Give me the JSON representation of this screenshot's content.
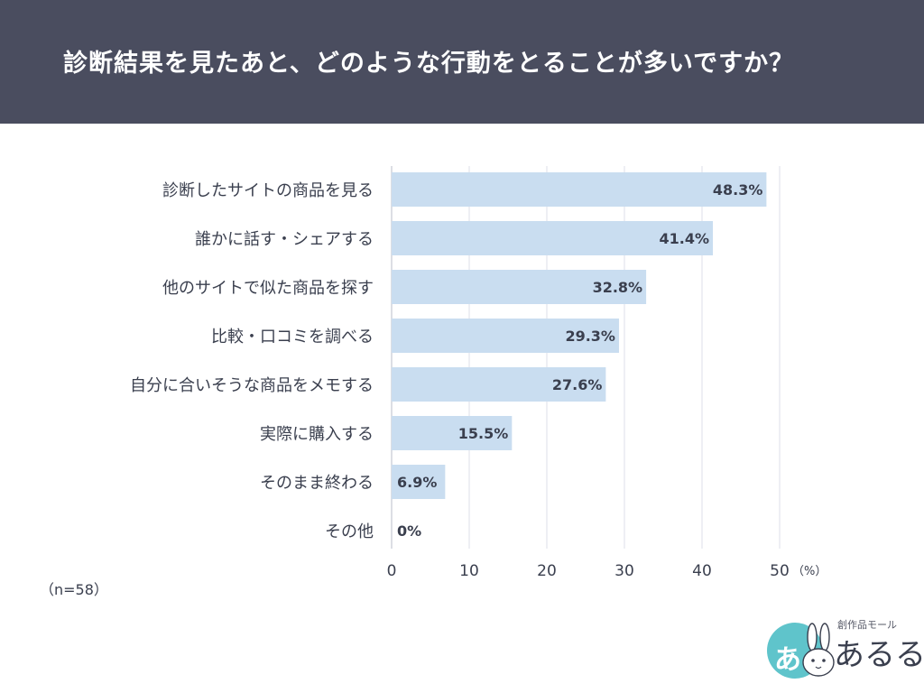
{
  "header": {
    "title": "診断結果を見たあと、どのような行動をとることが多いですか？"
  },
  "note": "（n=58）",
  "logo": {
    "mark_char": "あ",
    "subtitle": "創作品モール",
    "name": "あるる"
  },
  "colors": {
    "header_bg": "#4a4d5f",
    "bar": "#c9ddf0",
    "grid": "#dcdfe8",
    "logo_teal": "#5fc4cb"
  },
  "chart_data": {
    "type": "bar",
    "orientation": "horizontal",
    "categories": [
      "診断したサイトの商品を見る",
      "誰かに話す・シェアする",
      "他のサイトで似た商品を探す",
      "比較・口コミを調べる",
      "自分に合いそうな商品をメモする",
      "実際に購入する",
      "そのまま終わる",
      "その他"
    ],
    "values": [
      48.3,
      41.4,
      32.8,
      29.3,
      27.6,
      15.5,
      6.9,
      0
    ],
    "value_labels": [
      "48.3%",
      "41.4%",
      "32.8%",
      "29.3%",
      "27.6%",
      "15.5%",
      "6.9%",
      "0%"
    ],
    "xlim": [
      0,
      50
    ],
    "xticks": [
      0,
      10,
      20,
      30,
      40,
      50
    ],
    "xtick_labels": [
      "0",
      "10",
      "20",
      "30",
      "40",
      "50"
    ],
    "x_unit": "（%）",
    "grid": true
  }
}
